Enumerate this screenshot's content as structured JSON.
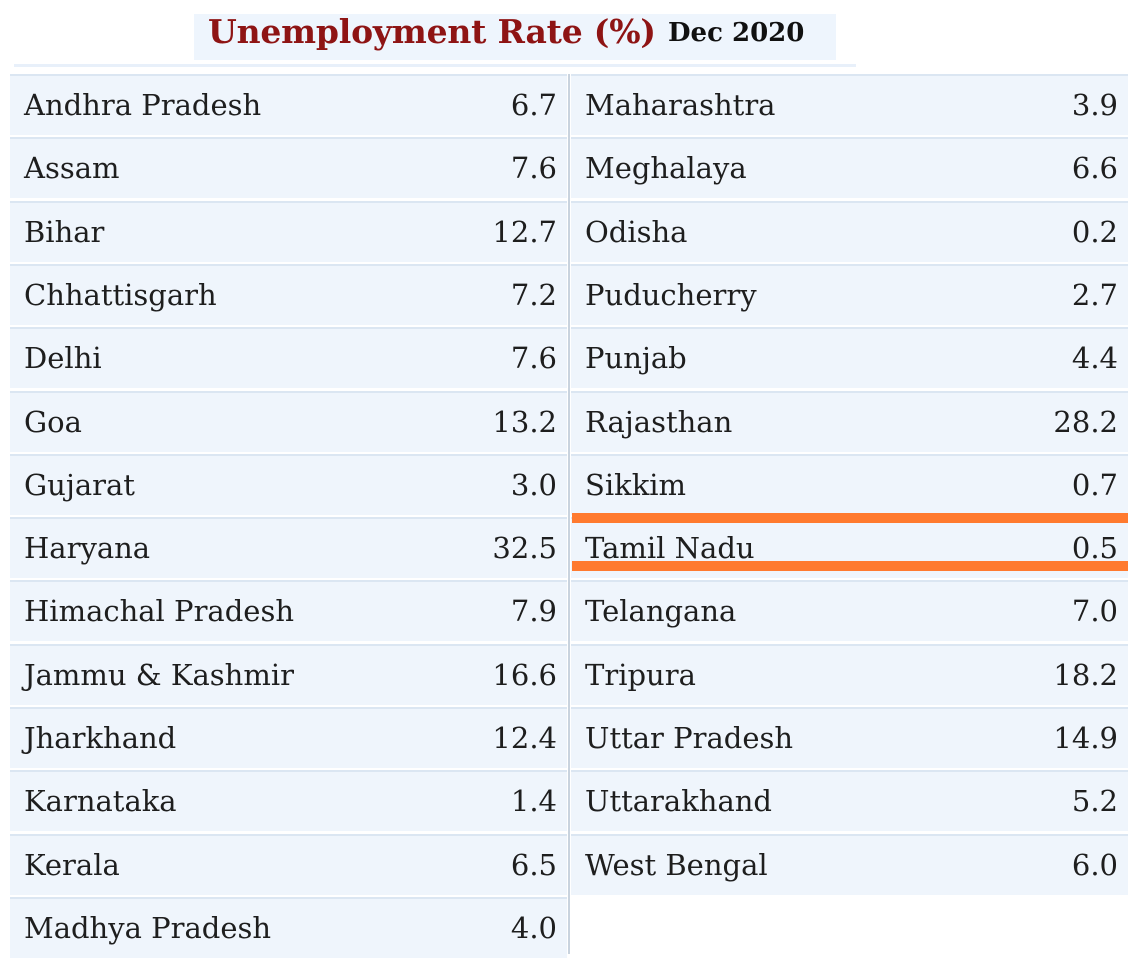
{
  "chart_data": {
    "type": "table",
    "title": "Unemployment Rate (%)",
    "subtitle": "Dec 2020",
    "left_column": [
      {
        "state": "Andhra Pradesh",
        "value": "6.7"
      },
      {
        "state": "Assam",
        "value": "7.6"
      },
      {
        "state": "Bihar",
        "value": "12.7"
      },
      {
        "state": "Chhattisgarh",
        "value": "7.2"
      },
      {
        "state": "Delhi",
        "value": "7.6"
      },
      {
        "state": "Goa",
        "value": "13.2"
      },
      {
        "state": "Gujarat",
        "value": "3.0"
      },
      {
        "state": "Haryana",
        "value": "32.5"
      },
      {
        "state": "Himachal Pradesh",
        "value": "7.9"
      },
      {
        "state": "Jammu & Kashmir",
        "value": "16.6"
      },
      {
        "state": "Jharkhand",
        "value": "12.4"
      },
      {
        "state": "Karnataka",
        "value": "1.4"
      },
      {
        "state": "Kerala",
        "value": "6.5"
      },
      {
        "state": "Madhya Pradesh",
        "value": "4.0"
      }
    ],
    "right_column": [
      {
        "state": "Maharashtra",
        "value": "3.9"
      },
      {
        "state": "Meghalaya",
        "value": "6.6"
      },
      {
        "state": "Odisha",
        "value": "0.2"
      },
      {
        "state": "Puducherry",
        "value": "2.7"
      },
      {
        "state": "Punjab",
        "value": "4.4"
      },
      {
        "state": "Rajasthan",
        "value": "28.2"
      },
      {
        "state": "Sikkim",
        "value": "0.7"
      },
      {
        "state": "Tamil Nadu",
        "value": "0.5"
      },
      {
        "state": "Telangana",
        "value": "7.0"
      },
      {
        "state": "Tripura",
        "value": "18.2"
      },
      {
        "state": "Uttar Pradesh",
        "value": "14.9"
      },
      {
        "state": "Uttarakhand",
        "value": "5.2"
      },
      {
        "state": "West Bengal",
        "value": "6.0"
      }
    ],
    "highlighted_state": "Tamil Nadu",
    "highlight_color": "#ff7a2f",
    "title_color": "#8e1414",
    "row_background": "#eff5fc"
  }
}
